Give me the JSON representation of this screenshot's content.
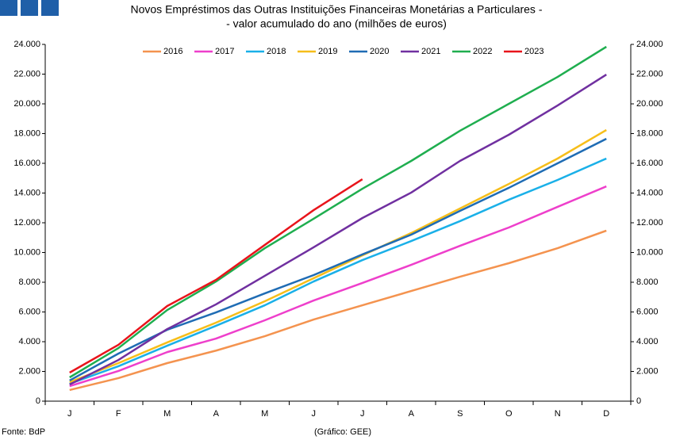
{
  "chart_data": {
    "type": "line",
    "title": [
      "Novos Empréstimos das Outras Instituições Financeiras Monetárias a Particulares -",
      "- valor acumulado do ano (milhões de euros)"
    ],
    "categories": [
      "J",
      "F",
      "M",
      "A",
      "M",
      "J",
      "J",
      "A",
      "S",
      "O",
      "N",
      "D"
    ],
    "series": [
      {
        "name": "2016",
        "color": "#f4934f",
        "values": [
          750,
          1550,
          2560,
          3400,
          4370,
          5490,
          6450,
          7410,
          8370,
          9280,
          10290,
          11470
        ]
      },
      {
        "name": "2017",
        "color": "#ee3fcb",
        "values": [
          1010,
          2030,
          3300,
          4210,
          5440,
          6770,
          7950,
          9170,
          10450,
          11680,
          13070,
          14450
        ]
      },
      {
        "name": "2018",
        "color": "#1ab0e8",
        "values": [
          1170,
          2350,
          3730,
          5070,
          6450,
          8050,
          9490,
          10770,
          12110,
          13550,
          14880,
          16320
        ]
      },
      {
        "name": "2019",
        "color": "#f6be1a",
        "values": [
          1280,
          2560,
          3950,
          5280,
          6720,
          8270,
          9810,
          11310,
          12960,
          14610,
          16320,
          18240
        ]
      },
      {
        "name": "2020",
        "color": "#1f6cb4",
        "values": [
          1390,
          3200,
          4800,
          5970,
          7250,
          8480,
          9870,
          11200,
          12800,
          14350,
          16000,
          17650
        ]
      },
      {
        "name": "2021",
        "color": "#7030a0",
        "values": [
          1120,
          2770,
          4850,
          6510,
          8430,
          10350,
          12320,
          14030,
          16160,
          17920,
          19890,
          21970
        ]
      },
      {
        "name": "2022",
        "color": "#1fae4f",
        "values": [
          1600,
          3570,
          6130,
          8050,
          10290,
          12270,
          14290,
          16160,
          18190,
          20000,
          21810,
          23840
        ]
      },
      {
        "name": "2023",
        "color": "#e8141b",
        "values": [
          1920,
          3790,
          6400,
          8160,
          10510,
          12850,
          14930,
          null,
          null,
          null,
          null,
          null
        ]
      }
    ],
    "ylim": [
      0,
      24000
    ],
    "yticks": [
      0,
      {
        "value": 2000,
        "label": "2.000"
      },
      {
        "value": 4000,
        "label": "4.000"
      },
      {
        "value": 6000,
        "label": "6.000"
      },
      {
        "value": 8000,
        "label": "8.000"
      },
      {
        "value": 10000,
        "label": "10.000"
      },
      {
        "value": 12000,
        "label": "12.000"
      },
      {
        "value": 14000,
        "label": "14.000"
      },
      {
        "value": 16000,
        "label": "16.000"
      },
      {
        "value": 18000,
        "label": "18.000"
      },
      {
        "value": 20000,
        "label": "20.000"
      },
      {
        "value": 22000,
        "label": "22.000"
      },
      {
        "value": 24000,
        "label": "24.000"
      }
    ],
    "y2lim": [
      0,
      24000
    ],
    "y2ticks": [
      0,
      {
        "value": 2000,
        "label": "2.000"
      },
      {
        "value": 4000,
        "label": "4.000"
      },
      {
        "value": 6000,
        "label": "6.000"
      },
      {
        "value": 8000,
        "label": "8.000"
      },
      {
        "value": 10000,
        "label": "10.000"
      },
      {
        "value": 12000,
        "label": "12.000"
      },
      {
        "value": 14000,
        "label": "14.000"
      },
      {
        "value": 16000,
        "label": "16.000"
      },
      {
        "value": 18000,
        "label": "18.000"
      },
      {
        "value": 20000,
        "label": "20.000"
      },
      {
        "value": 22000,
        "label": "22.000"
      },
      {
        "value": 24000,
        "label": "24.000"
      }
    ],
    "grid": false,
    "legend": "top",
    "source": "Fonte: BdP",
    "credit": "(Gráfico: GEE)"
  }
}
